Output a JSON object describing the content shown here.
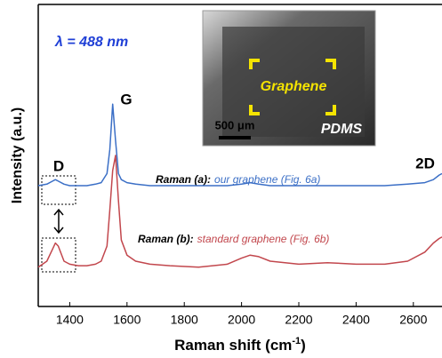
{
  "chart_data": {
    "type": "line",
    "ylabel": "Intensity (a.u.)",
    "xlabel": [
      "Raman shift (cm",
      "-1",
      ")"
    ],
    "x": [
      1290,
      1320,
      1340,
      1350,
      1360,
      1380,
      1400,
      1430,
      1460,
      1490,
      1510,
      1530,
      1540,
      1550,
      1560,
      1570,
      1580,
      1600,
      1630,
      1680,
      1750,
      1850,
      1950,
      2000,
      2030,
      2060,
      2100,
      2200,
      2300,
      2400,
      2500,
      2580,
      2640,
      2670,
      2690,
      2700
    ],
    "xlim": [
      1290,
      2700
    ],
    "xticks": [
      1400,
      1600,
      1800,
      2000,
      2200,
      2400,
      2600
    ],
    "ylim": [
      0,
      100
    ],
    "series": [
      {
        "name": "Raman (a):",
        "description": "our graphene (Fig. 6a)",
        "color": "#3b6fc6",
        "values": [
          40,
          40.5,
          41.5,
          42,
          41.5,
          40.5,
          40,
          40,
          40,
          40.5,
          41,
          44,
          52,
          67,
          55,
          44,
          42,
          41,
          40.5,
          40,
          40,
          40,
          40,
          40.5,
          41,
          40.5,
          40,
          40,
          40,
          40,
          40,
          40.5,
          41,
          42,
          43.5,
          44
        ]
      },
      {
        "name": "Raman (b):",
        "description": "standard graphene (Fig. 6b)",
        "color": "#c2474d",
        "values": [
          13,
          15,
          19,
          21,
          20,
          15,
          14,
          13.5,
          13.5,
          14,
          15,
          20,
          32,
          45,
          50,
          35,
          22,
          17,
          15,
          14,
          13.5,
          13,
          14,
          16,
          17,
          16.5,
          15,
          14,
          14.5,
          14,
          14,
          15,
          18,
          21,
          22.5,
          23
        ]
      }
    ],
    "annotations": [
      "λ = 488 nm",
      "G",
      "D",
      "2D"
    ],
    "inset": {
      "label": "Graphene",
      "scale": "500 μm",
      "substrate": "PDMS"
    }
  }
}
